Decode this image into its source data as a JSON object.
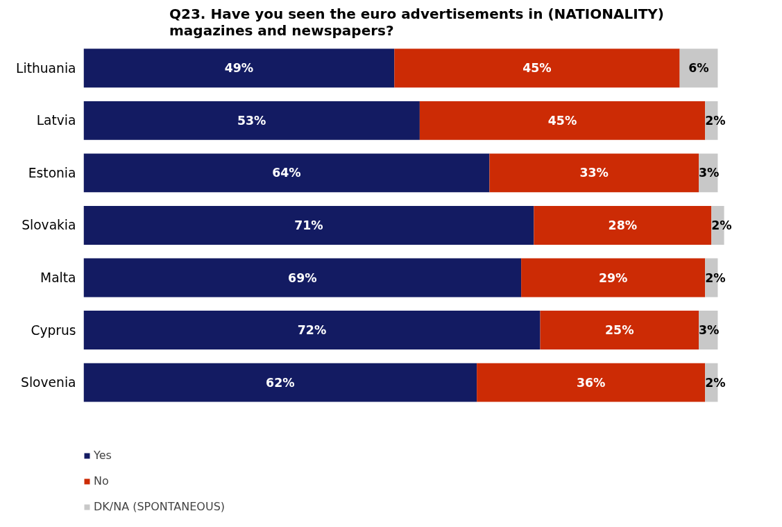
{
  "chart_data": {
    "type": "bar",
    "orientation": "horizontal",
    "stacked": true,
    "title": "Q23. Have you seen the euro advertisements in (NATIONALITY)\nmagazines and newspapers?",
    "categories": [
      "Lithuania",
      "Latvia",
      "Estonia",
      "Slovakia",
      "Malta",
      "Cyprus",
      "Slovenia"
    ],
    "series": [
      {
        "name": "Yes",
        "color": "#131b62",
        "values": [
          49,
          53,
          64,
          71,
          69,
          72,
          62
        ],
        "value_labels": [
          "49%",
          "53%",
          "64%",
          "71%",
          "69%",
          "72%",
          "62%"
        ]
      },
      {
        "name": "No",
        "color": "#cc2b05",
        "values": [
          45,
          45,
          33,
          28,
          29,
          25,
          36
        ],
        "value_labels": [
          "45%",
          "45%",
          "33%",
          "28%",
          "29%",
          "25%",
          "36%"
        ]
      },
      {
        "name": "DK/NA (SPONTANEOUS)",
        "color": "#c8c8c8",
        "values": [
          6,
          2,
          3,
          2,
          2,
          3,
          2
        ],
        "value_labels": [
          "6%",
          "2%",
          "3%",
          "2%",
          "2%",
          "3%",
          "2%"
        ]
      }
    ],
    "legend": "bottom left",
    "tick_labels": "y"
  }
}
